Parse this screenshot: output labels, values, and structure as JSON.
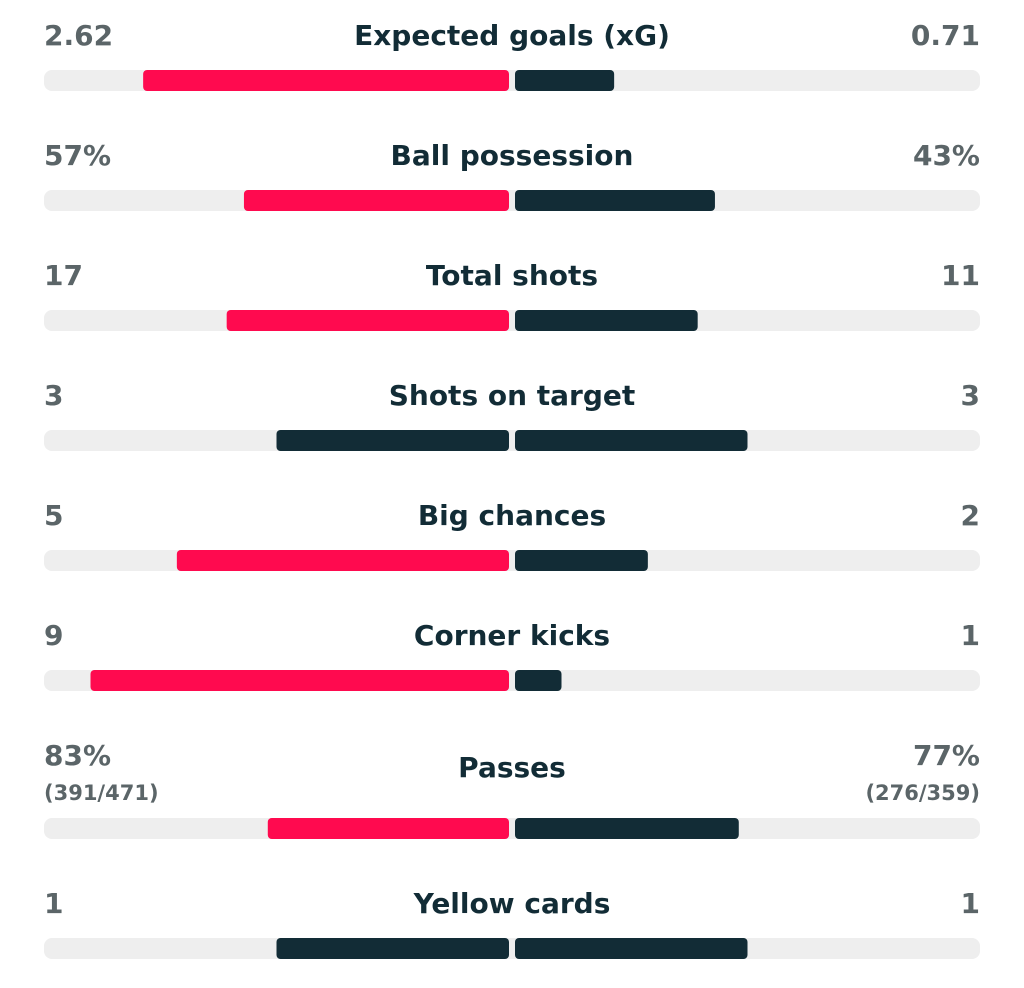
{
  "stats": [
    {
      "label": "Expected goals (xG)",
      "home": 2.62,
      "away": 0.71
    },
    {
      "label": "Ball possession",
      "home": {
        "value": 57,
        "label": "57%"
      },
      "away": {
        "value": 43,
        "label": "43%"
      }
    },
    {
      "label": "Total shots",
      "home": 17,
      "away": 11
    },
    {
      "label": "Shots on target",
      "home": 3,
      "away": 3
    },
    {
      "label": "Big chances",
      "home": 5,
      "away": 2
    },
    {
      "label": "Corner kicks",
      "home": 9,
      "away": 1
    },
    {
      "label": "Passes",
      "home": {
        "value": 83,
        "label": "83%",
        "detail": "(391/471)"
      },
      "away": {
        "value": 77,
        "label": "77%",
        "detail": "(276/359)"
      }
    },
    {
      "label": "Yellow cards",
      "home": 1,
      "away": 1
    }
  ],
  "colors": {
    "leader": "#ff0a4f",
    "other": "#122c36",
    "track": "#eeeeee"
  }
}
